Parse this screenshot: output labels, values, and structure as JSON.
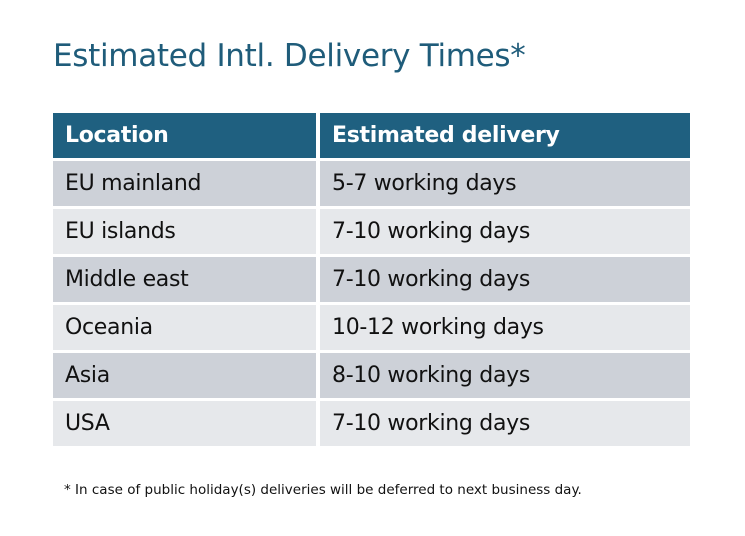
{
  "title": "Estimated Intl. Delivery Times*",
  "colors": {
    "title": "#1F5C7A",
    "header_bg": "#1F6080",
    "row_dark": "#CDD1D8",
    "row_light": "#E6E8EB"
  },
  "table": {
    "headers": [
      "Location",
      "Estimated delivery"
    ],
    "rows": [
      [
        "EU mainland",
        "5-7 working days"
      ],
      [
        "EU islands",
        "7-10 working days"
      ],
      [
        "Middle east",
        "7-10 working days"
      ],
      [
        "Oceania",
        "10-12 working days"
      ],
      [
        "Asia",
        "8-10 working days"
      ],
      [
        "USA",
        "7-10 working days"
      ]
    ]
  },
  "footnote": "* In case of public holiday(s) deliveries will be deferred to next business day."
}
